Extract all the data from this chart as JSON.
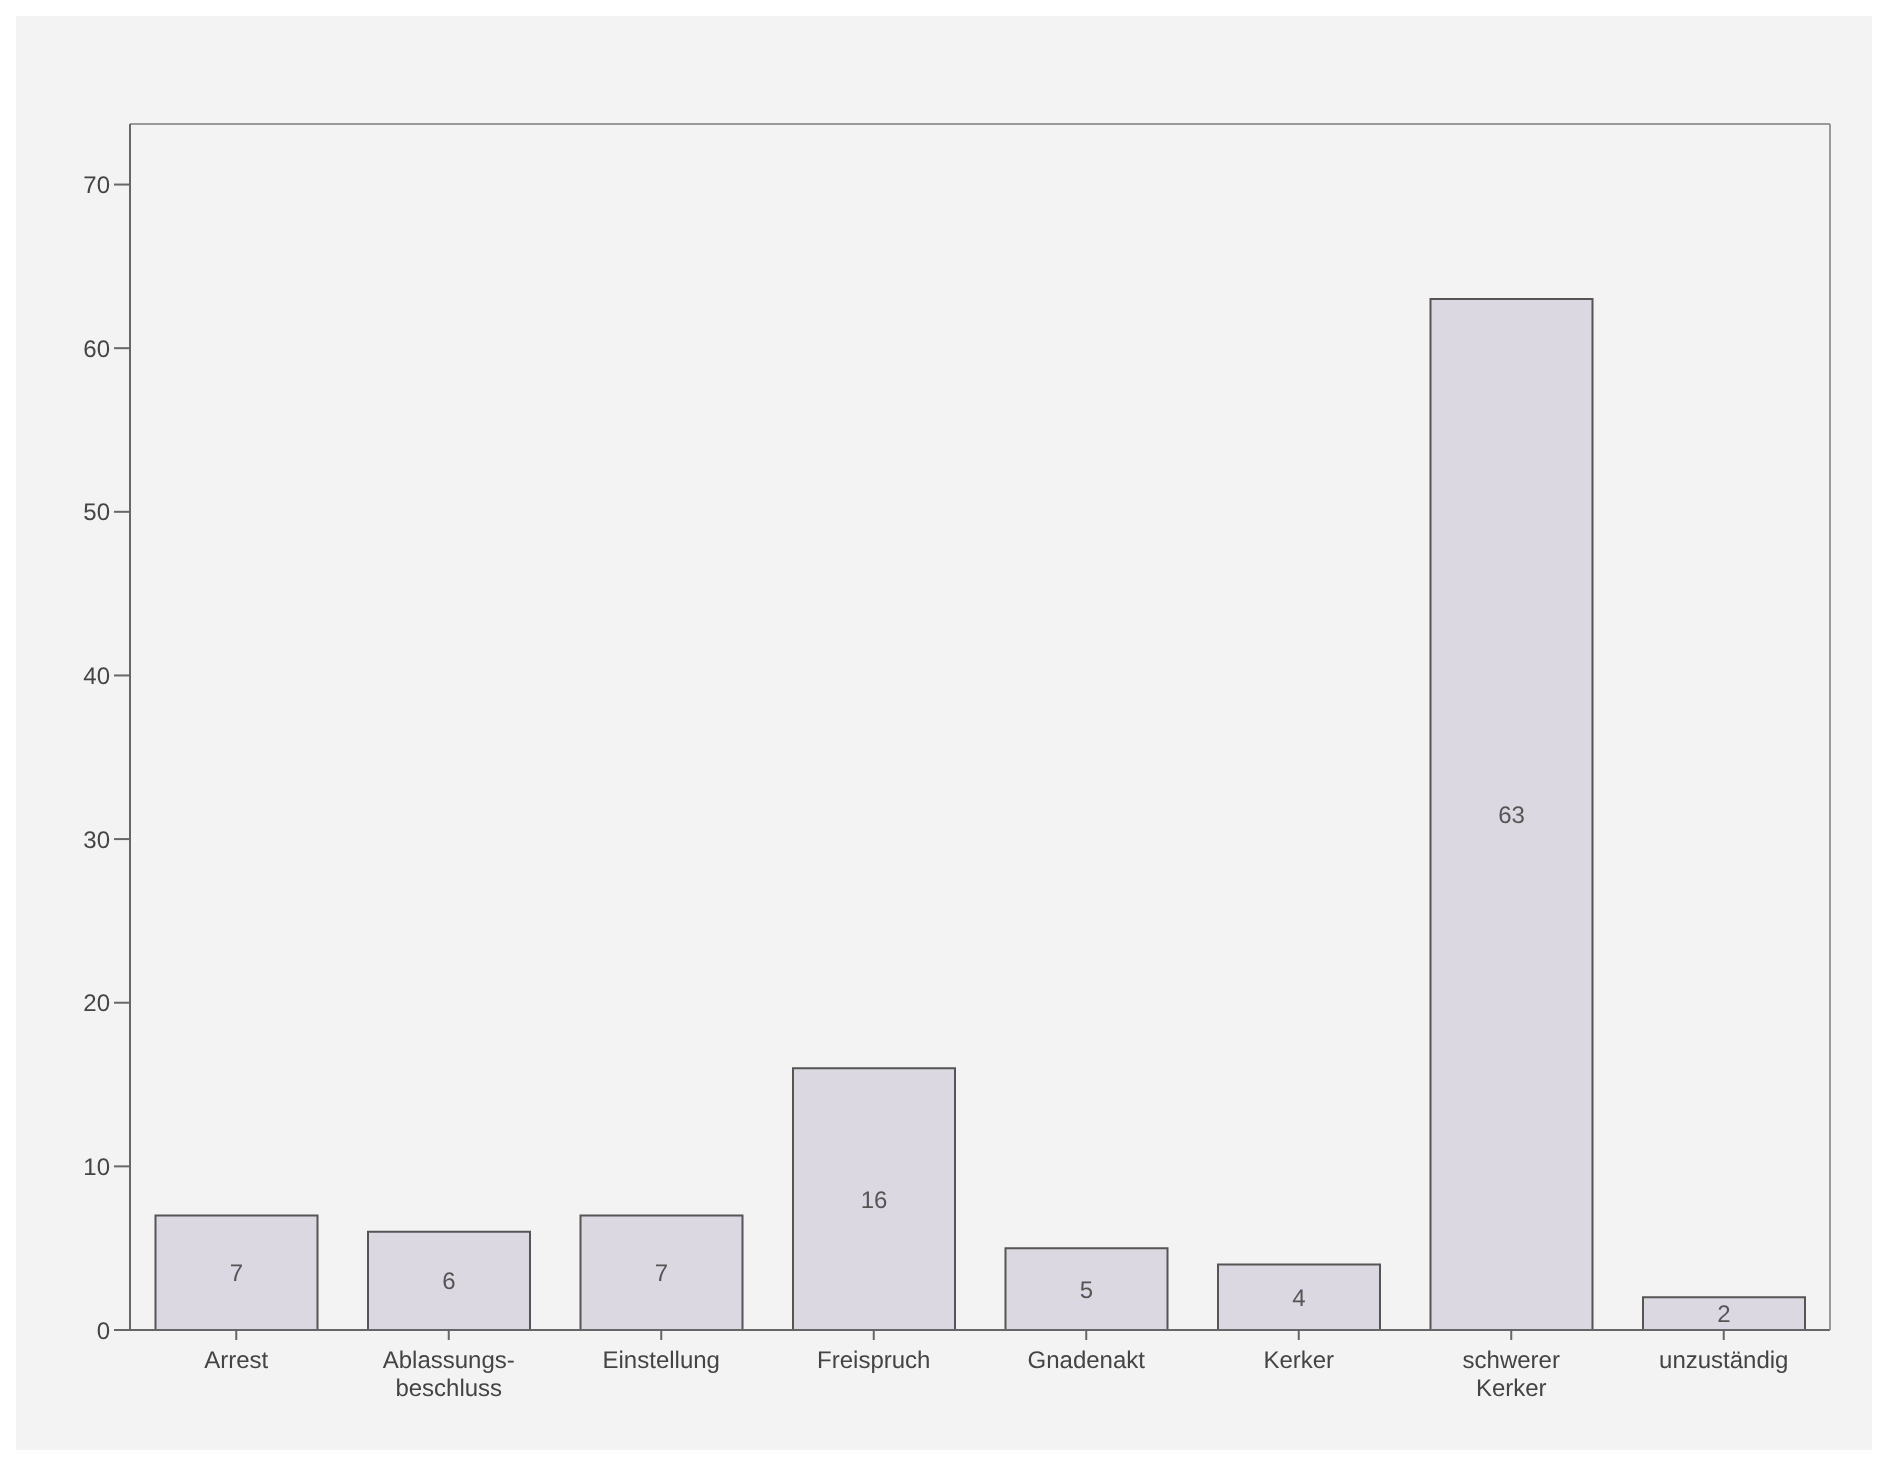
{
  "chart_data": {
    "type": "bar",
    "categories": [
      "Arrest",
      "Ablassungs-\nbeschluss",
      "Einstellung",
      "Freispruch",
      "Gnadenakt",
      "Kerker",
      "schwerer\nKerker",
      "unzuständig"
    ],
    "values": [
      7,
      6,
      7,
      16,
      5,
      4,
      63,
      2
    ],
    "color": "#dcd8e2",
    "data_labels": true,
    "ylim": [
      0,
      73.7
    ],
    "yticks": [
      0,
      10,
      20,
      30,
      40,
      50,
      60,
      70
    ],
    "grid": false
  }
}
